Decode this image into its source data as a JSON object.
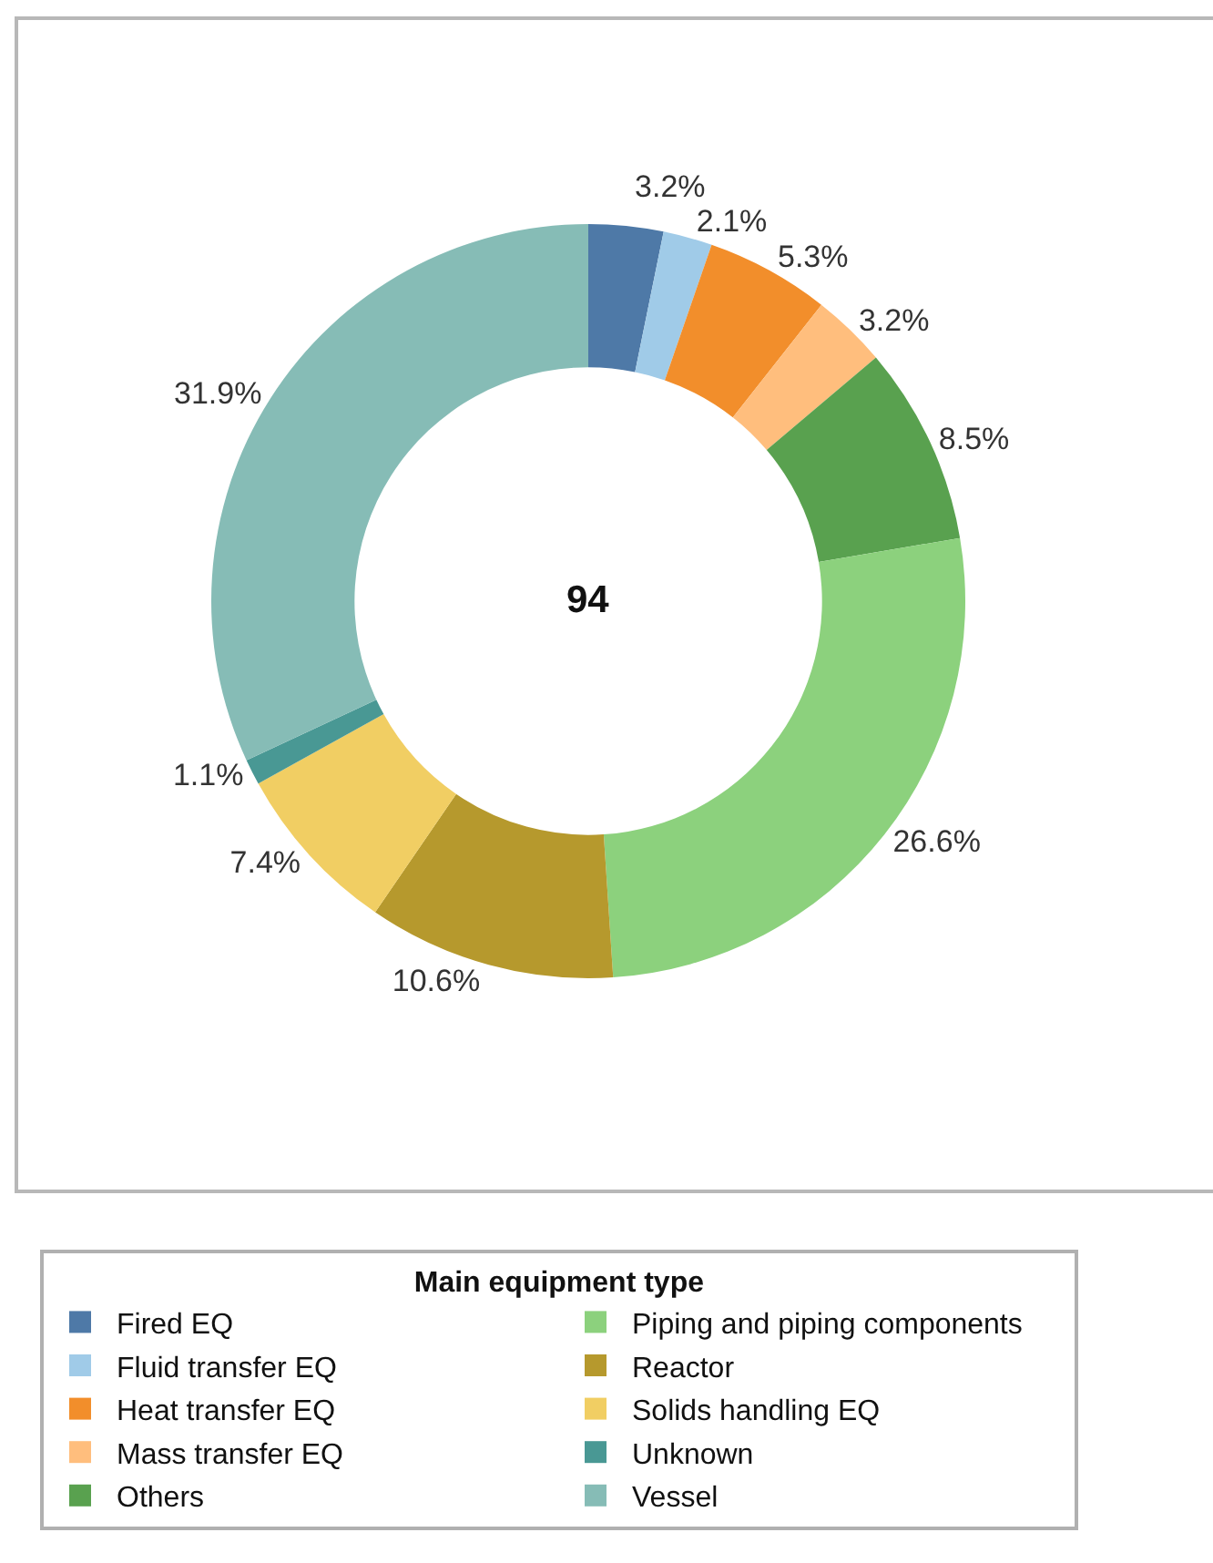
{
  "chart_data": {
    "type": "donut",
    "categories": [
      "Fired EQ",
      "Fluid transfer EQ",
      "Heat transfer EQ",
      "Mass transfer EQ",
      "Others",
      "Piping and piping components",
      "Reactor",
      "Solids handling EQ",
      "Unknown",
      "Vessel"
    ],
    "values": [
      3.2,
      2.1,
      5.3,
      3.2,
      8.5,
      26.6,
      10.6,
      7.4,
      1.1,
      31.9
    ],
    "colors": [
      "#4e79a7",
      "#a0cbe8",
      "#f28e2b",
      "#ffbe7d",
      "#59a14f",
      "#8cd17d",
      "#b6992d",
      "#f1ce63",
      "#499894",
      "#86bcb6"
    ],
    "value_labels": [
      "3.2%",
      "2.1%",
      "5.3%",
      "3.2%",
      "8.5%",
      "26.6%",
      "10.6%",
      "7.4%",
      "1.1%",
      "31.9%"
    ],
    "legend": "bottom",
    "legend_title": "Main equipment type",
    "annotations": [
      "94"
    ]
  }
}
